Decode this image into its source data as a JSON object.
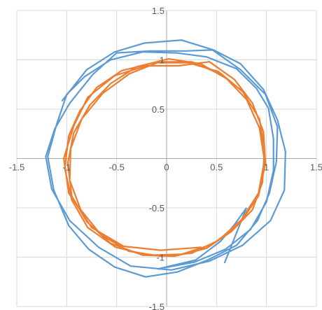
{
  "chart_data": {
    "type": "scatter",
    "title": "",
    "xlabel": "",
    "ylabel": "",
    "xlim": [
      -1.5,
      1.5
    ],
    "ylim": [
      -1.5,
      1.5
    ],
    "x_ticks": [
      "-1.5",
      "-1",
      "-0.5",
      "0",
      "0.5",
      "1",
      "1.5"
    ],
    "y_ticks": [
      "1.5",
      "1",
      "0.5",
      "0",
      "-0.5",
      "-1",
      "-1.5"
    ],
    "grid": true,
    "legend": "none",
    "series": [
      {
        "color": "#5b9bd5",
        "points": [
          [
            -1.05,
            0.58
          ],
          [
            -0.8,
            0.9
          ],
          [
            -0.52,
            1.08
          ],
          [
            -0.22,
            1.17
          ],
          [
            0.15,
            1.2
          ],
          [
            0.47,
            1.1
          ],
          [
            0.74,
            0.96
          ],
          [
            0.97,
            0.7
          ],
          [
            1.11,
            0.39
          ],
          [
            1.19,
            0.07
          ],
          [
            1.18,
            -0.32
          ],
          [
            1.04,
            -0.63
          ],
          [
            0.76,
            -0.88
          ],
          [
            0.43,
            -1.04
          ],
          [
            0.05,
            -1.13
          ],
          [
            -0.36,
            -1.09
          ],
          [
            -0.68,
            -0.9
          ],
          [
            -0.97,
            -0.63
          ],
          [
            -1.15,
            -0.31
          ],
          [
            -1.21,
            0.02
          ],
          [
            -1.12,
            0.3
          ],
          [
            -0.97,
            0.56
          ],
          [
            -0.74,
            0.85
          ],
          [
            -0.5,
            1.07
          ],
          [
            -0.16,
            1.09
          ],
          [
            0.19,
            1.09
          ],
          [
            0.46,
            1.1
          ],
          [
            0.74,
            0.9
          ],
          [
            0.99,
            0.65
          ],
          [
            1.11,
            0.32
          ],
          [
            1.1,
            -0.03
          ],
          [
            1.03,
            -0.35
          ],
          [
            0.91,
            -0.63
          ],
          [
            0.7,
            -0.88
          ],
          [
            0.41,
            -1.03
          ],
          [
            0.11,
            -1.15
          ],
          [
            -0.21,
            -1.2
          ],
          [
            -0.52,
            -1.1
          ],
          [
            -0.78,
            -0.92
          ],
          [
            -0.98,
            -0.68
          ],
          [
            -1.13,
            -0.32
          ],
          [
            -1.19,
            0.02
          ],
          [
            -1.1,
            0.35
          ],
          [
            -1.0,
            0.65
          ],
          [
            -0.82,
            0.83
          ],
          [
            -0.56,
            1.0
          ],
          [
            -0.24,
            1.08
          ],
          [
            0.1,
            1.07
          ],
          [
            0.4,
            1.03
          ],
          [
            0.7,
            0.91
          ],
          [
            0.9,
            0.71
          ],
          [
            1.02,
            0.51
          ],
          [
            1.07,
            0.2
          ],
          [
            1.07,
            -0.12
          ],
          [
            1.0,
            -0.44
          ],
          [
            0.84,
            -0.72
          ],
          [
            0.59,
            -0.92
          ],
          [
            0.28,
            -1.05
          ],
          [
            -0.09,
            -1.12
          ],
          [
            0.29,
            -1.03
          ],
          [
            0.54,
            -0.84
          ],
          [
            0.68,
            -0.67
          ],
          [
            0.8,
            -0.5
          ],
          [
            0.58,
            -1.06
          ]
        ]
      },
      {
        "color": "#ed7d31",
        "points": [
          [
            0.35,
            -0.9
          ],
          [
            -0.06,
            -0.93
          ],
          [
            -0.43,
            -0.89
          ],
          [
            -0.75,
            -0.7
          ],
          [
            -0.98,
            -0.35
          ],
          [
            -1.03,
            0.0
          ],
          [
            -0.93,
            0.33
          ],
          [
            -0.79,
            0.62
          ],
          [
            -0.52,
            0.84
          ],
          [
            -0.2,
            0.94
          ],
          [
            0.12,
            0.94
          ],
          [
            0.43,
            0.98
          ],
          [
            0.68,
            0.8
          ],
          [
            0.86,
            0.56
          ],
          [
            0.97,
            0.27
          ],
          [
            0.99,
            -0.05
          ],
          [
            0.92,
            -0.38
          ],
          [
            0.73,
            -0.66
          ],
          [
            0.46,
            -0.87
          ],
          [
            0.15,
            -0.97
          ],
          [
            -0.18,
            -0.98
          ],
          [
            -0.51,
            -0.9
          ],
          [
            -0.79,
            -0.7
          ],
          [
            -0.95,
            -0.42
          ],
          [
            -1.02,
            -0.1
          ],
          [
            -0.98,
            0.23
          ],
          [
            -0.87,
            0.48
          ],
          [
            -0.7,
            0.72
          ],
          [
            -0.45,
            0.89
          ],
          [
            -0.13,
            0.97
          ],
          [
            0.22,
            0.97
          ],
          [
            0.52,
            0.88
          ],
          [
            0.76,
            0.68
          ],
          [
            0.93,
            0.4
          ],
          [
            0.98,
            0.09
          ],
          [
            0.96,
            -0.24
          ],
          [
            0.86,
            -0.52
          ],
          [
            0.65,
            -0.74
          ],
          [
            0.4,
            -0.91
          ],
          [
            0.08,
            -0.99
          ],
          [
            -0.24,
            -0.98
          ],
          [
            -0.56,
            -0.86
          ],
          [
            -0.8,
            -0.64
          ],
          [
            -0.95,
            -0.38
          ],
          [
            -0.99,
            -0.05
          ],
          [
            -0.93,
            0.26
          ],
          [
            -0.77,
            0.54
          ],
          [
            -0.56,
            0.76
          ],
          [
            -0.3,
            0.93
          ],
          [
            0.02,
            1.01
          ],
          [
            0.34,
            0.96
          ],
          [
            0.6,
            0.81
          ],
          [
            0.8,
            0.6
          ],
          [
            0.93,
            0.31
          ],
          [
            0.98,
            -0.02
          ],
          [
            0.92,
            -0.35
          ],
          [
            0.75,
            -0.62
          ],
          [
            0.52,
            -0.83
          ],
          [
            0.25,
            -0.96
          ],
          [
            -0.06,
            -0.99
          ],
          [
            -0.38,
            -0.94
          ],
          [
            -0.66,
            -0.77
          ],
          [
            -0.86,
            -0.52
          ],
          [
            -0.97,
            -0.22
          ],
          [
            -0.96,
            0.1
          ],
          [
            -0.85,
            0.4
          ],
          [
            -0.64,
            0.66
          ],
          [
            -0.37,
            0.86
          ],
          [
            -0.07,
            0.98
          ],
          [
            0.25,
            0.98
          ],
          [
            0.55,
            0.85
          ]
        ]
      }
    ]
  }
}
